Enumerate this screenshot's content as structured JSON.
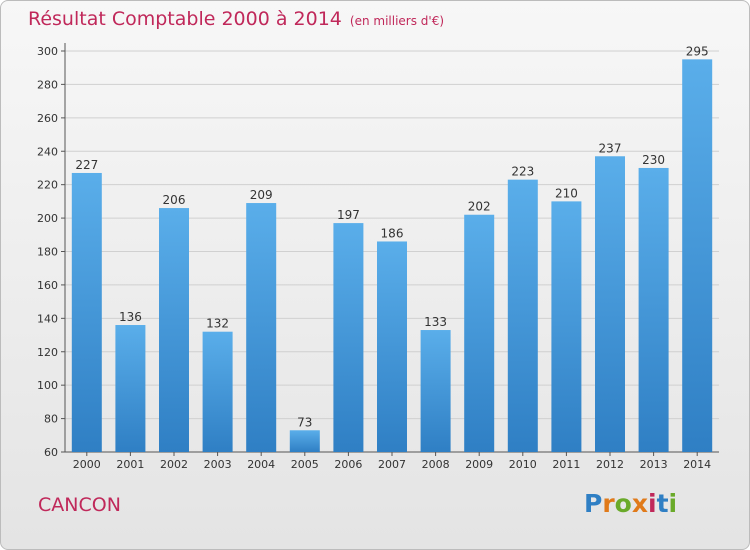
{
  "header": {
    "title": "Résultat Comptable 2000 à 2014",
    "unit": "(en milliers d'€)"
  },
  "footer": {
    "town": "CANCON",
    "logo_text": "Proxiti"
  },
  "colors": {
    "title": "#c0285a",
    "bar_top": "#5aaeea",
    "bar_bottom": "#2f7fc4",
    "grid": "#d0d0d0",
    "logo": [
      "#2f7fc4",
      "#e07a1a",
      "#6aaa2a",
      "#e07a1a",
      "#c0285a",
      "#2f7fc4",
      "#6aaa2a"
    ]
  },
  "chart_data": {
    "type": "bar",
    "categories": [
      "2000",
      "2001",
      "2002",
      "2003",
      "2004",
      "2005",
      "2006",
      "2007",
      "2008",
      "2009",
      "2010",
      "2011",
      "2012",
      "2013",
      "2014"
    ],
    "values": [
      227,
      136,
      206,
      132,
      209,
      73,
      197,
      186,
      133,
      202,
      223,
      210,
      237,
      230,
      295
    ],
    "data_labels": [
      "227",
      "136",
      "206",
      "132",
      "209",
      "73",
      "197",
      "186",
      "133",
      "202",
      "223",
      "210",
      "237",
      "230",
      "295"
    ],
    "title": "Résultat Comptable 2000 à 2014",
    "xlabel": "",
    "ylabel": "",
    "ylim": [
      60,
      300
    ],
    "yticks": [
      60,
      80,
      100,
      120,
      140,
      160,
      180,
      200,
      220,
      240,
      260,
      280,
      300
    ],
    "grid": true,
    "legend": "none"
  }
}
